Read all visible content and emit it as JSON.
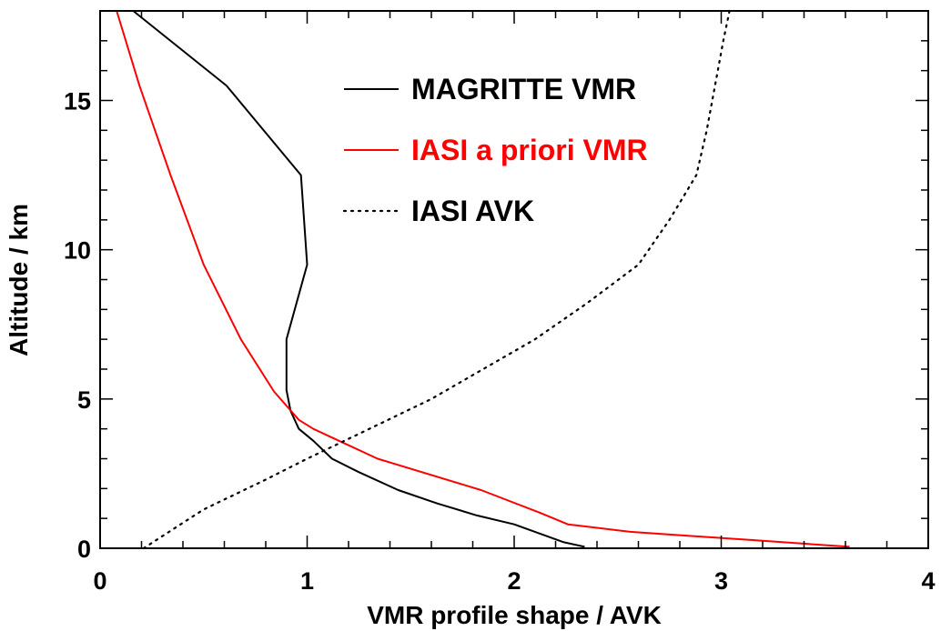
{
  "chart_data": {
    "type": "line",
    "xlabel": "VMR profile shape / AVK",
    "ylabel": "Altitude / km",
    "xlim": [
      0,
      4
    ],
    "ylim": [
      0,
      18
    ],
    "x_ticks": [
      0,
      1,
      2,
      3,
      4
    ],
    "x_tick_labels": [
      "0",
      "1",
      "2",
      "3",
      "4"
    ],
    "y_ticks": [
      0,
      5,
      10,
      15
    ],
    "y_tick_labels": [
      "0",
      "5",
      "10",
      "15"
    ],
    "grid": false,
    "legend_position": "top-right",
    "series": [
      {
        "name": "MAGRITTE VMR",
        "color": "#000000",
        "style": "solid",
        "points": [
          [
            2.34,
            0.05
          ],
          [
            2.24,
            0.2
          ],
          [
            2.12,
            0.5
          ],
          [
            2.0,
            0.8
          ],
          [
            1.82,
            1.1
          ],
          [
            1.63,
            1.5
          ],
          [
            1.44,
            1.95
          ],
          [
            1.25,
            2.55
          ],
          [
            1.12,
            3.0
          ],
          [
            1.03,
            3.6
          ],
          [
            0.96,
            4.0
          ],
          [
            0.92,
            4.6
          ],
          [
            0.9,
            5.3
          ],
          [
            0.9,
            7.0
          ],
          [
            1.0,
            9.5
          ],
          [
            0.97,
            12.5
          ],
          [
            0.61,
            15.5
          ],
          [
            0.16,
            18.0
          ]
        ]
      },
      {
        "name": "IASI a priori VMR",
        "color": "#ff0000",
        "style": "solid",
        "points": [
          [
            3.62,
            0.05
          ],
          [
            3.2,
            0.25
          ],
          [
            2.56,
            0.55
          ],
          [
            2.26,
            0.8
          ],
          [
            2.12,
            1.2
          ],
          [
            1.84,
            1.95
          ],
          [
            1.34,
            3.0
          ],
          [
            1.03,
            4.0
          ],
          [
            0.96,
            4.3
          ],
          [
            0.84,
            5.25
          ],
          [
            0.68,
            7.0
          ],
          [
            0.5,
            9.5
          ],
          [
            0.34,
            12.5
          ],
          [
            0.19,
            15.5
          ],
          [
            0.08,
            18.0
          ]
        ]
      },
      {
        "name": "IASI AVK",
        "color": "#000000",
        "style": "dotted",
        "points": [
          [
            0.21,
            0.0
          ],
          [
            0.5,
            1.3
          ],
          [
            0.8,
            2.3
          ],
          [
            1.0,
            3.0
          ],
          [
            1.3,
            4.0
          ],
          [
            1.6,
            5.0
          ],
          [
            1.85,
            6.0
          ],
          [
            2.1,
            7.0
          ],
          [
            2.35,
            8.2
          ],
          [
            2.6,
            9.5
          ],
          [
            2.75,
            11.0
          ],
          [
            2.88,
            12.5
          ],
          [
            2.93,
            14.0
          ],
          [
            2.97,
            15.5
          ],
          [
            3.01,
            17.0
          ],
          [
            3.04,
            18.0
          ]
        ]
      }
    ]
  }
}
